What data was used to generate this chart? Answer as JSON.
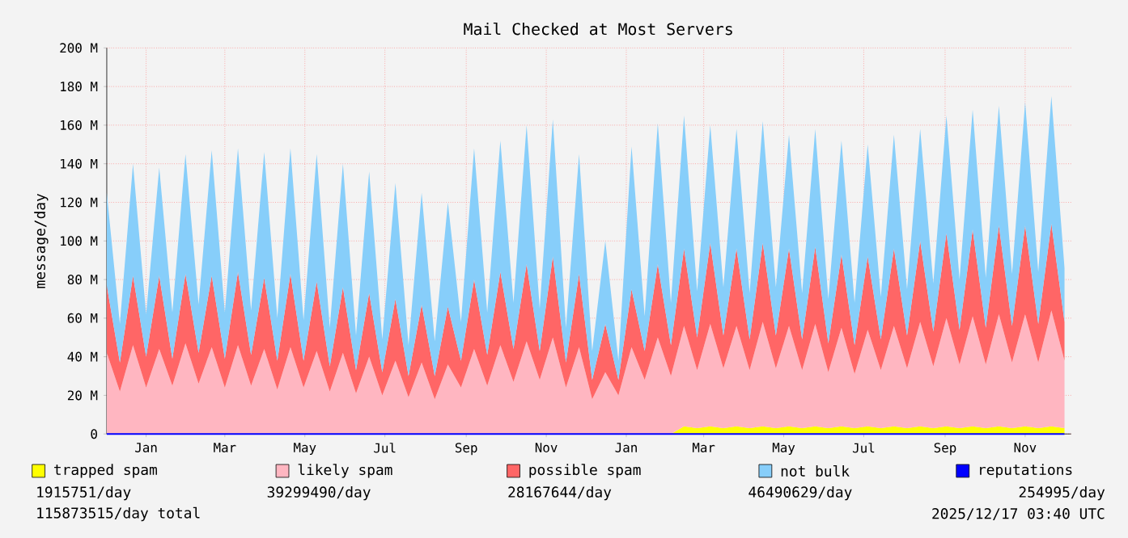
{
  "chart_data": {
    "type": "area",
    "title": "Mail Checked at Most Servers",
    "ylabel": "message/day",
    "stacked": true,
    "legend": "bottom",
    "grid": true,
    "x": [
      "2023-12-17",
      "2023-12-27",
      "2024-01-06",
      "2024-01-16",
      "2024-01-26",
      "2024-02-05",
      "2024-02-15",
      "2024-02-25",
      "2024-03-06",
      "2024-03-16",
      "2024-03-26",
      "2024-04-05",
      "2024-04-15",
      "2024-04-25",
      "2024-05-05",
      "2024-05-15",
      "2024-05-25",
      "2024-06-04",
      "2024-06-14",
      "2024-06-24",
      "2024-07-04",
      "2024-07-14",
      "2024-07-24",
      "2024-08-03",
      "2024-08-13",
      "2024-08-23",
      "2024-09-02",
      "2024-09-12",
      "2024-09-22",
      "2024-10-02",
      "2024-10-12",
      "2024-10-22",
      "2024-11-01",
      "2024-11-11",
      "2024-11-21",
      "2024-12-01",
      "2024-12-11",
      "2024-12-21",
      "2024-12-31",
      "2025-01-10",
      "2025-01-20",
      "2025-01-30",
      "2025-02-09",
      "2025-02-19",
      "2025-03-01",
      "2025-03-11",
      "2025-03-21",
      "2025-03-31",
      "2025-04-10",
      "2025-04-20",
      "2025-04-30",
      "2025-05-10",
      "2025-05-20",
      "2025-05-30",
      "2025-06-09",
      "2025-06-19",
      "2025-06-29",
      "2025-07-09",
      "2025-07-19",
      "2025-07-29",
      "2025-08-08",
      "2025-08-18",
      "2025-08-28",
      "2025-09-07",
      "2025-09-17",
      "2025-09-27",
      "2025-10-07",
      "2025-10-17",
      "2025-10-27",
      "2025-11-06",
      "2025-11-16",
      "2025-11-26",
      "2025-12-06",
      "2025-12-16"
    ],
    "xlim": [
      "2023-12-17",
      "2025-12-21"
    ],
    "xticks": [
      {
        "value": "2024-01-16",
        "label": "Jan"
      },
      {
        "value": "2024-03-16",
        "label": "Mar"
      },
      {
        "value": "2024-05-16",
        "label": "May"
      },
      {
        "value": "2024-07-16",
        "label": "Jul"
      },
      {
        "value": "2024-09-16",
        "label": "Sep"
      },
      {
        "value": "2024-11-16",
        "label": "Nov"
      },
      {
        "value": "2025-01-16",
        "label": "Jan"
      },
      {
        "value": "2025-03-16",
        "label": "Mar"
      },
      {
        "value": "2025-05-16",
        "label": "May"
      },
      {
        "value": "2025-07-16",
        "label": "Jul"
      },
      {
        "value": "2025-09-16",
        "label": "Sep"
      },
      {
        "value": "2025-11-16",
        "label": "Nov"
      }
    ],
    "ylim": [
      0,
      200
    ],
    "yticks": [
      0,
      {
        "value": 20,
        "label": "20 M"
      },
      {
        "value": 40,
        "label": "40 M"
      },
      {
        "value": 60,
        "label": "60 M"
      },
      {
        "value": 80,
        "label": "80 M"
      },
      {
        "value": 100,
        "label": "100 M"
      },
      {
        "value": 120,
        "label": "120 M"
      },
      {
        "value": 140,
        "label": "140 M"
      },
      {
        "value": 160,
        "label": "160 M"
      },
      {
        "value": 180,
        "label": "180 M"
      },
      {
        "value": 200,
        "label": "200 M"
      }
    ],
    "series": [
      {
        "name": "trapped spam",
        "color": "#ffff00",
        "values": [
          0,
          0,
          0,
          0,
          0,
          0,
          0,
          0,
          0,
          0,
          0,
          0,
          0,
          0,
          0,
          0,
          0,
          0,
          0,
          0,
          0,
          0,
          0,
          0,
          0,
          0,
          0,
          0,
          0,
          0,
          0,
          0,
          0,
          0,
          0,
          0,
          0,
          0,
          0,
          0,
          0,
          0,
          0,
          0,
          4,
          3,
          4,
          3,
          4,
          3,
          4,
          3,
          4,
          3,
          4,
          3,
          4,
          3,
          4,
          3,
          4,
          3,
          4,
          3,
          4,
          3,
          4,
          3,
          4,
          3,
          4,
          3,
          4,
          3
        ]
      },
      {
        "name": "likely spam",
        "color": "#ffb6c1",
        "values": [
          42,
          22,
          46,
          24,
          44,
          25,
          47,
          26,
          45,
          24,
          46,
          25,
          44,
          23,
          45,
          24,
          43,
          22,
          42,
          21,
          40,
          20,
          38,
          19,
          37,
          18,
          36,
          24,
          44,
          25,
          46,
          27,
          48,
          28,
          50,
          24,
          45,
          18,
          32,
          20,
          45,
          28,
          50,
          30,
          52,
          30,
          53,
          31,
          52,
          30,
          54,
          31,
          52,
          30,
          53,
          29,
          51,
          28,
          50,
          30,
          52,
          31,
          54,
          32,
          56,
          33,
          57,
          33,
          58,
          34,
          58,
          34,
          60,
          35
        ]
      },
      {
        "name": "possible spam",
        "color": "#ff6666",
        "values": [
          35,
          15,
          36,
          16,
          38,
          14,
          36,
          16,
          37,
          15,
          38,
          16,
          37,
          15,
          38,
          14,
          36,
          13,
          34,
          12,
          33,
          12,
          32,
          11,
          30,
          12,
          30,
          14,
          36,
          16,
          38,
          17,
          40,
          15,
          42,
          13,
          38,
          10,
          25,
          8,
          30,
          15,
          38,
          16,
          40,
          17,
          42,
          17,
          40,
          16,
          41,
          17,
          40,
          16,
          40,
          15,
          38,
          15,
          38,
          16,
          40,
          17,
          42,
          18,
          44,
          18,
          45,
          19,
          46,
          19,
          46,
          20,
          45,
          20
        ]
      },
      {
        "name": "not bulk",
        "color": "#87cefa",
        "values": [
          48,
          20,
          58,
          22,
          56,
          24,
          62,
          25,
          65,
          24,
          64,
          23,
          65,
          22,
          65,
          21,
          66,
          20,
          64,
          18,
          63,
          17,
          60,
          16,
          58,
          18,
          54,
          20,
          68,
          22,
          68,
          24,
          72,
          22,
          71,
          18,
          62,
          15,
          43,
          10,
          74,
          18,
          73,
          22,
          69,
          24,
          61,
          25,
          62,
          24,
          63,
          25,
          59,
          24,
          61,
          23,
          59,
          22,
          58,
          22,
          59,
          24,
          58,
          25,
          61,
          26,
          62,
          26,
          62,
          27,
          64,
          27,
          66,
          28
        ]
      },
      {
        "name": "reputations",
        "color": "#0000ff",
        "type": "line",
        "values": [
          0,
          0,
          0,
          0,
          0,
          0,
          0,
          0,
          0,
          0,
          0,
          0,
          0,
          0,
          0,
          0,
          0,
          0,
          0,
          0,
          0,
          0,
          0,
          0,
          0,
          0,
          0,
          0,
          0,
          0,
          0,
          0,
          0,
          0,
          0,
          0,
          0,
          0,
          0,
          0,
          0,
          0,
          0,
          0,
          0,
          0,
          0,
          0,
          0,
          0,
          0,
          0,
          0,
          0,
          0,
          0,
          0,
          0,
          0,
          0,
          0,
          0,
          0,
          0,
          0,
          0,
          0,
          0,
          0,
          0,
          0,
          0,
          0,
          0
        ]
      }
    ],
    "annotations": [
      "1915751/day",
      "39299490/day",
      "28167644/day",
      "46490629/day",
      "254995/day",
      "115873515/day total",
      "2025/12/17 03:40 UTC"
    ]
  }
}
